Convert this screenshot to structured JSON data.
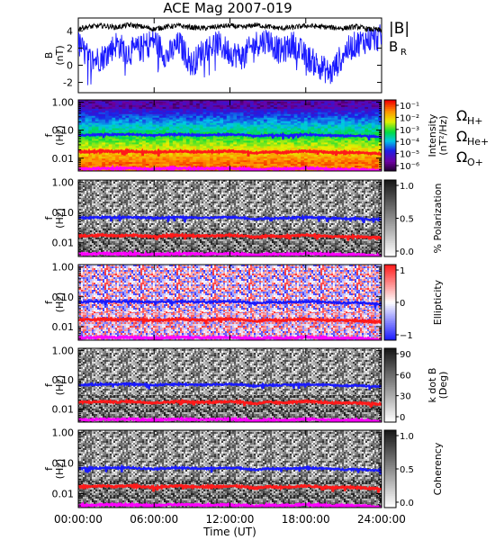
{
  "title": "ACE Mag 2007-019",
  "chart_data": {
    "type": "spectrogram-stack",
    "title": "ACE Mag 2007-019",
    "x": {
      "label": "Time (UT)",
      "ticks": [
        "00:00:00",
        "06:00:00",
        "12:00:00",
        "18:00:00",
        "24:00:00"
      ],
      "range_hours": [
        0,
        24
      ]
    },
    "top_panel": {
      "type": "line",
      "ylabel": [
        "B",
        "(nT)"
      ],
      "yticks": [
        "4",
        "2",
        "0",
        "-2"
      ],
      "ylim": [
        -3.2,
        5.5
      ],
      "series": [
        {
          "name": "|B|",
          "color": "#000000",
          "hours": [
            0,
            1,
            2,
            3,
            4,
            5,
            6,
            7,
            8,
            9,
            10,
            11,
            12,
            13,
            14,
            15,
            16,
            17,
            18,
            19,
            20,
            21,
            22,
            23,
            24
          ],
          "values": [
            4.3,
            4.5,
            4.6,
            4.4,
            4.7,
            4.5,
            4.2,
            4.5,
            4.6,
            4.4,
            4.3,
            4.5,
            4.6,
            4.4,
            4.7,
            4.5,
            4.3,
            4.4,
            4.6,
            4.5,
            4.4,
            4.3,
            4.5,
            4.2,
            4.1
          ]
        },
        {
          "name": "B",
          "subscript": "R",
          "color": "#1a1aff",
          "hours": [
            0,
            1,
            2,
            3,
            4,
            5,
            6,
            7,
            8,
            9,
            10,
            11,
            12,
            13,
            14,
            15,
            16,
            17,
            18,
            19,
            20,
            21,
            22,
            23,
            24
          ],
          "values": [
            2.5,
            0.5,
            1.0,
            2.5,
            1.5,
            2.0,
            3.0,
            1.0,
            2.5,
            0.0,
            2.0,
            2.5,
            1.5,
            1.0,
            2.5,
            3.0,
            1.5,
            2.5,
            1.0,
            0.0,
            -1.0,
            1.5,
            2.5,
            3.0,
            3.2
          ]
        }
      ]
    },
    "common_y": {
      "label": [
        "f",
        "(Hz)"
      ],
      "ticks": [
        "1.00",
        "0.10",
        "0.01"
      ],
      "log": true,
      "range_hz": [
        0.0035,
        1.2
      ]
    },
    "overlay_legend": [
      {
        "symbol": "Ω",
        "subscript": "H+",
        "color": "#1a1aff"
      },
      {
        "symbol": "Ω",
        "subscript": "He+",
        "color": "#ff1a1a"
      },
      {
        "symbol": "Ω",
        "subscript": "O+",
        "color": "#ff00ff"
      }
    ],
    "overlays": {
      "hours": [
        0,
        1,
        2,
        3,
        4,
        5,
        6,
        7,
        8,
        9,
        10,
        11,
        12,
        13,
        14,
        15,
        16,
        17,
        18,
        19,
        20,
        21,
        22,
        23,
        24
      ],
      "H+": [
        0.066,
        0.068,
        0.07,
        0.069,
        0.071,
        0.068,
        0.065,
        0.069,
        0.07,
        0.068,
        0.066,
        0.069,
        0.07,
        0.068,
        0.06,
        0.066,
        0.065,
        0.067,
        0.07,
        0.068,
        0.065,
        0.062,
        0.064,
        0.06,
        0.058
      ],
      "He+": [
        0.017,
        0.017,
        0.018,
        0.017,
        0.018,
        0.017,
        0.016,
        0.017,
        0.018,
        0.017,
        0.017,
        0.017,
        0.018,
        0.017,
        0.015,
        0.017,
        0.016,
        0.017,
        0.018,
        0.017,
        0.016,
        0.016,
        0.016,
        0.015,
        0.0145
      ],
      "O+": [
        0.0042,
        0.0042,
        0.0044,
        0.0043,
        0.0044,
        0.0042,
        0.0041,
        0.0043,
        0.0044,
        0.0043,
        0.0042,
        0.0043,
        0.0044,
        0.0042,
        0.0038,
        0.0042,
        0.0041,
        0.0042,
        0.0044,
        0.0043,
        0.0041,
        0.004,
        0.0041,
        0.0038,
        0.0036
      ]
    },
    "panels": [
      {
        "quantity": "intensity",
        "colormap": "rainbow",
        "colorbar_label": [
          "Intensity",
          "(nT²/Hz)"
        ],
        "colorbar_ticks": [
          "10⁻¹",
          "10⁻²",
          "10⁻³",
          "10⁻⁴",
          "10⁻⁵",
          "10⁻⁶"
        ]
      },
      {
        "quantity": "polarization",
        "colormap": "gray",
        "colorbar_label": [
          "% Polarization"
        ],
        "colorbar_ticks": [
          "1.0",
          "0.5",
          "0.0"
        ]
      },
      {
        "quantity": "ellipticity",
        "colormap": "bwr",
        "colorbar_label": [
          "Ellipticity"
        ],
        "colorbar_ticks": [
          "1",
          "0",
          "−1"
        ]
      },
      {
        "quantity": "kdotb",
        "colormap": "gray",
        "colorbar_label": [
          "k dot B",
          "(Deg)"
        ],
        "colorbar_ticks": [
          "90",
          "60",
          "30",
          "0"
        ]
      },
      {
        "quantity": "coherency",
        "colormap": "gray",
        "colorbar_label": [
          "Coherency"
        ],
        "colorbar_ticks": [
          "1.0",
          "0.5",
          "0.0"
        ]
      }
    ]
  }
}
